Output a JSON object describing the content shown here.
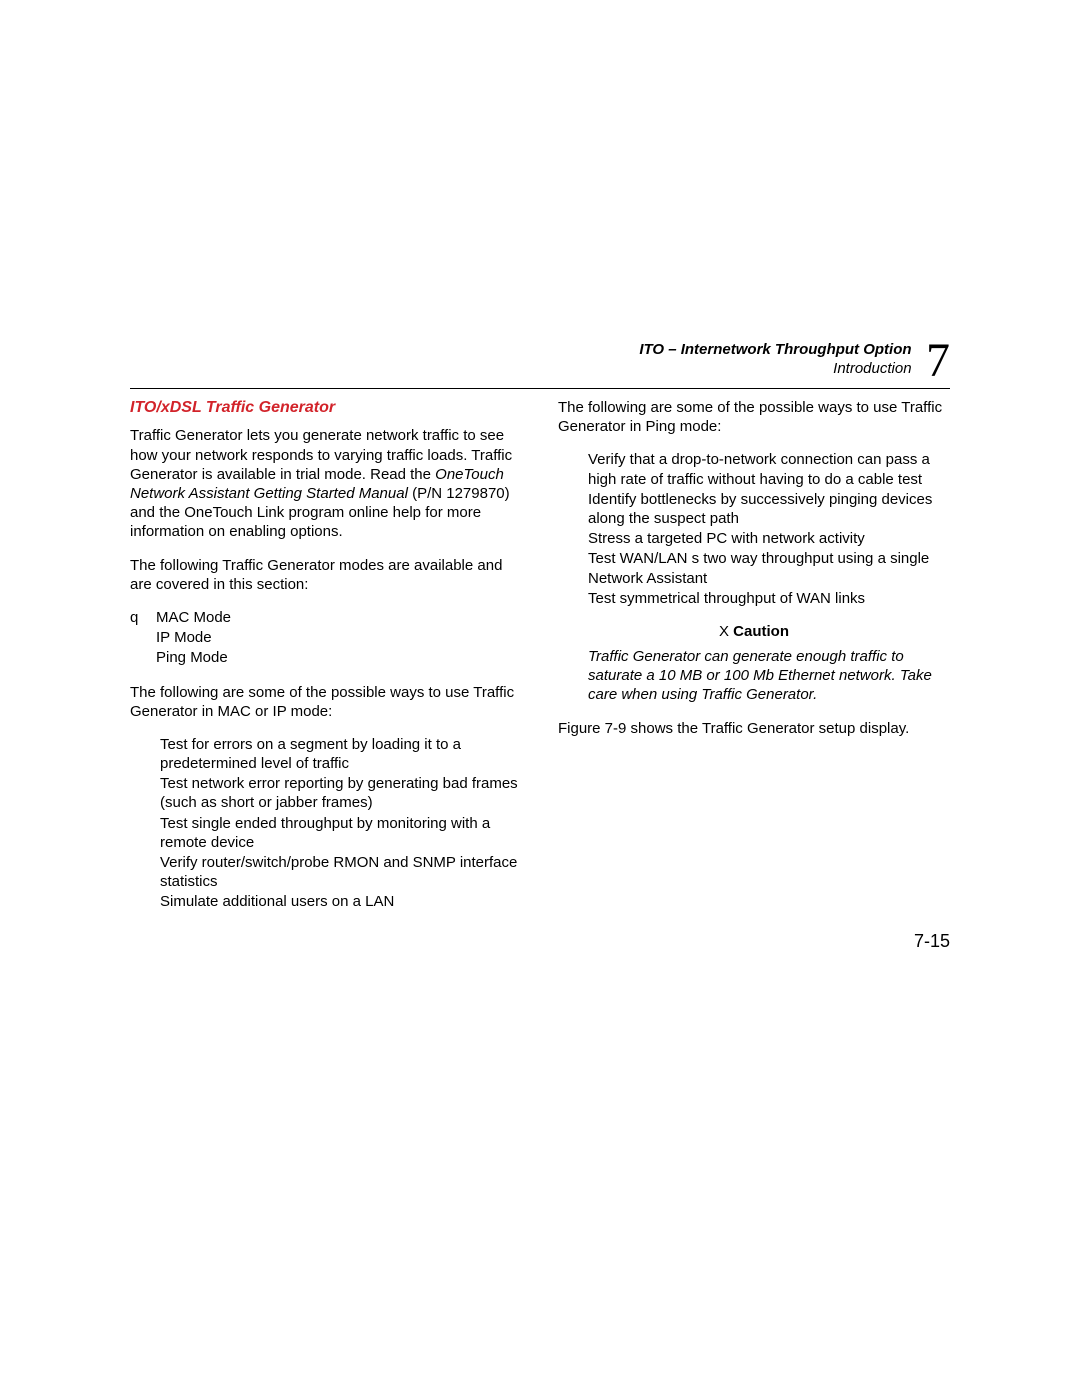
{
  "header": {
    "title": "ITO – Internetwork Throughput Option",
    "subtitle": "Introduction",
    "chapter": "7"
  },
  "left": {
    "section_title": "ITO/xDSL Traffic Generator",
    "p1_a": "Traffic Generator lets you generate network traffic to see how your network responds to varying traffic loads. Traffic Generator is available in trial mode. Read the ",
    "p1_b": "OneTouch Network Assistant Getting Started Manual",
    "p1_c": " (P/N 1279870) and the OneTouch Link program online help for more information on enabling options.",
    "p2": "The following Traffic Generator modes are available and are covered in this section:",
    "q": "q",
    "modes": [
      "MAC Mode",
      "IP Mode",
      "Ping Mode"
    ],
    "p3": "The following are some of the possible ways to use Traffic Generator in MAC or IP mode:",
    "list1": [
      "Test for errors on a segment by loading it to a predetermined level of traffic",
      "Test network error reporting by generating bad frames (such as short or jabber frames)",
      "Test single ended throughput by monitoring with a remote device",
      "Verify router/switch/probe RMON and SNMP interface statistics",
      "Simulate additional users on a LAN"
    ]
  },
  "right": {
    "p1": "The following are some of the possible ways to use Traffic Generator in Ping mode:",
    "list1": [
      "Verify that a drop-to-network connection can pass a high rate of traffic without having to do a cable test",
      "Identify bottlenecks by successively pinging devices along the suspect path",
      "Stress a targeted PC with network activity",
      "Test WAN/LAN s two way throughput using a single Network Assistant",
      "Test symmetrical throughput of WAN links"
    ],
    "caution_x": "X",
    "caution_label": "Caution",
    "caution_body": "Traffic Generator can generate enough traffic to saturate a 10 MB or 100 Mb Ethernet network. Take care when using Traffic Generator.",
    "p2": "Figure 7-9 shows the Traffic Generator setup display."
  },
  "page_number": "7-15"
}
